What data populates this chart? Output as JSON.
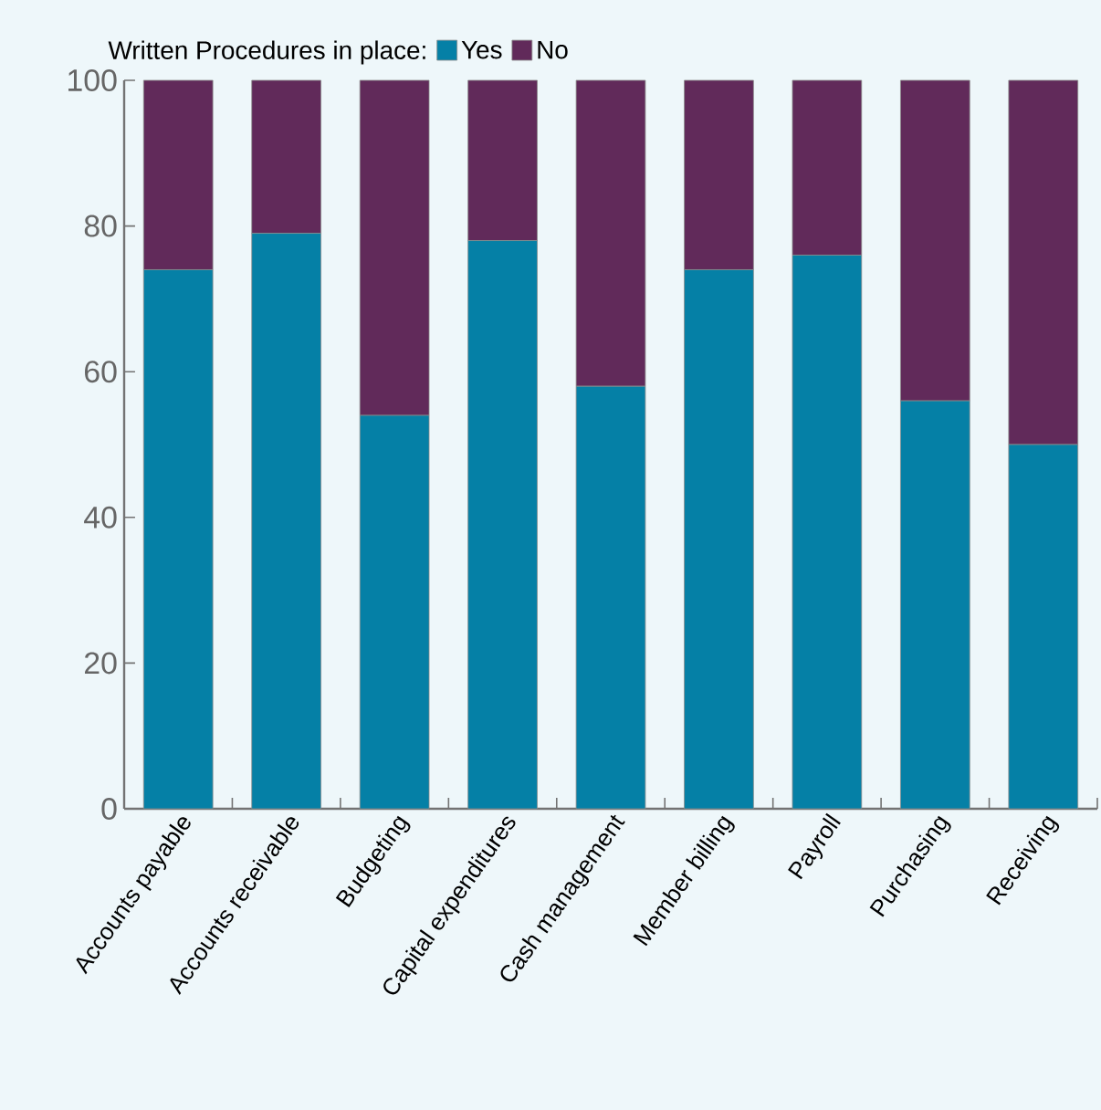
{
  "chart_data": {
    "type": "bar",
    "stacked": true,
    "legend_title": "Written Procedures in place:",
    "legend": "top",
    "categories": [
      "Accounts payable",
      "Accounts receivable",
      "Budgeting",
      "Capital expenditures",
      "Cash management",
      "Member billing",
      "Payroll",
      "Purchasing",
      "Receiving"
    ],
    "series": [
      {
        "name": "Yes",
        "color": "#0580a6",
        "values": [
          74,
          79,
          54,
          78,
          58,
          74,
          76,
          56,
          50
        ]
      },
      {
        "name": "No",
        "color": "#612a5a",
        "values": [
          26,
          21,
          46,
          22,
          42,
          26,
          24,
          44,
          50
        ]
      }
    ],
    "ylim": [
      0,
      100
    ],
    "yticks": [
      0,
      20,
      40,
      60,
      80,
      100
    ],
    "grid": false
  }
}
